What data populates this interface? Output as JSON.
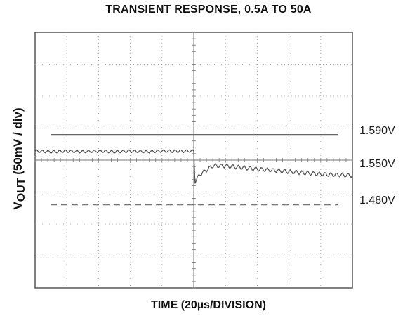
{
  "chart_data": {
    "type": "line",
    "title": "TRANSIENT RESPONSE, 0.5A TO 50A",
    "xlabel": "TIME (20µs/DIVISION)",
    "ylabel": {
      "v": "V",
      "sub": "OUT",
      "rest": " (50mV / div)"
    },
    "x_divisions": 10,
    "y_divisions": 8,
    "grid": true,
    "reference_levels": [
      {
        "label": "1.590V",
        "style": "solid",
        "value": 1.59
      },
      {
        "label": "1.550V",
        "style": "solid",
        "value": 1.55
      },
      {
        "label": "1.480V",
        "style": "dashed",
        "value": 1.48
      }
    ],
    "trace": {
      "x_div": [
        0,
        0.5,
        1,
        1.5,
        2,
        2.5,
        3,
        3.5,
        4,
        4.5,
        5.0,
        5.02,
        5.2,
        5.6,
        6,
        7,
        8,
        9,
        10
      ],
      "y_volts": [
        1.564,
        1.563,
        1.564,
        1.563,
        1.564,
        1.563,
        1.564,
        1.563,
        1.564,
        1.564,
        1.564,
        1.515,
        1.528,
        1.541,
        1.541,
        1.536,
        1.532,
        1.528,
        1.526
      ]
    }
  }
}
